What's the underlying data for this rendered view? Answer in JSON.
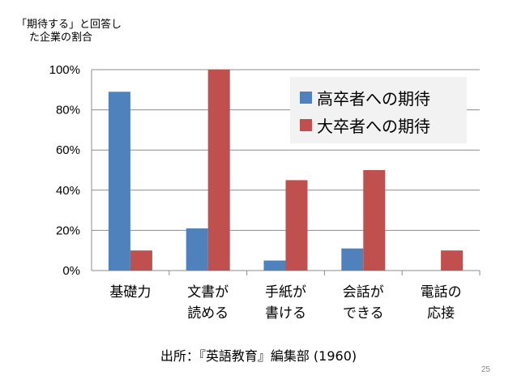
{
  "chart_data": {
    "type": "bar",
    "ylabel_lines": [
      "「期待する」と回答し",
      "た企業の割合"
    ],
    "categories": [
      [
        "基礎力"
      ],
      [
        "文書が",
        "読める"
      ],
      [
        "手紙が",
        "書ける"
      ],
      [
        "会話が",
        "できる"
      ],
      [
        "電話の",
        "応接"
      ]
    ],
    "series": [
      {
        "name": "高卒者への期待",
        "color": "#4f81bd",
        "values": [
          89,
          21,
          5,
          11,
          0
        ]
      },
      {
        "name": "大卒者への期待",
        "color": "#c0504d",
        "values": [
          10,
          100,
          45,
          50,
          10
        ]
      }
    ],
    "ylim": [
      0,
      100
    ],
    "yticks": [
      "0%",
      "20%",
      "40%",
      "60%",
      "80%",
      "100%"
    ],
    "grid": true,
    "legend_position": "top-right"
  },
  "source": "出所：『英語教育』編集部 (1960)",
  "page_number": "25"
}
